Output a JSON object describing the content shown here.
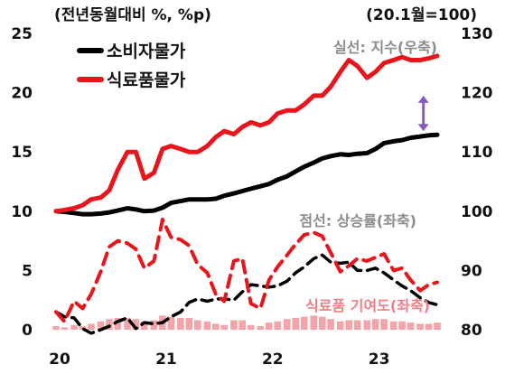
{
  "chart_data": {
    "type": "line",
    "left_unit": "(전년동월대비 %, %p)",
    "right_unit": "(20.1월=100)",
    "y_left": {
      "min": 0,
      "max": 25,
      "ticks": [
        "0",
        "5",
        "10",
        "15",
        "20",
        "25"
      ]
    },
    "y_right": {
      "min": 80,
      "max": 130,
      "ticks": [
        "80",
        "90",
        "100",
        "110",
        "120",
        "130"
      ]
    },
    "x_range": [
      2020.0,
      2023.58
    ],
    "x_ticks": [
      {
        "value": 2020.0,
        "label": "20"
      },
      {
        "value": 2021.0,
        "label": "21"
      },
      {
        "value": 2022.0,
        "label": "22"
      },
      {
        "value": 2023.0,
        "label": "23"
      }
    ],
    "legend": {
      "placement": "top-left",
      "items": [
        {
          "label": "소비자물가",
          "color": "#000000"
        },
        {
          "label": "식료품물가",
          "color": "#e8161c"
        }
      ]
    },
    "annotations": {
      "solid_note": "실선: 지수(우축)",
      "dashed_note": "점선: 상승률(좌축)",
      "bar_note": "식료품 기여도(좌축)"
    },
    "colors": {
      "cpi": "#000000",
      "food": "#e8161c",
      "bars": "#f4a3a8",
      "arrow": "#8a5cc0"
    },
    "series": [
      {
        "name": "소비자물가",
        "axis": "right",
        "style": "solid",
        "x": [
          2020.0,
          2020.08,
          2020.17,
          2020.25,
          2020.33,
          2020.42,
          2020.5,
          2020.58,
          2020.67,
          2020.75,
          2020.83,
          2020.92,
          2021.0,
          2021.08,
          2021.17,
          2021.25,
          2021.33,
          2021.42,
          2021.5,
          2021.58,
          2021.67,
          2021.75,
          2021.83,
          2021.92,
          2022.0,
          2022.08,
          2022.17,
          2022.25,
          2022.33,
          2022.42,
          2022.5,
          2022.58,
          2022.67,
          2022.75,
          2022.83,
          2022.92,
          2023.0,
          2023.08,
          2023.17,
          2023.25,
          2023.33,
          2023.42,
          2023.5,
          2023.58
        ],
        "values": [
          100.0,
          99.9,
          99.7,
          99.5,
          99.5,
          99.6,
          99.8,
          100.1,
          100.5,
          100.3,
          100.0,
          100.1,
          100.6,
          101.4,
          101.7,
          102.0,
          102.0,
          102.0,
          102.1,
          102.6,
          103.0,
          103.4,
          103.8,
          104.2,
          104.6,
          105.3,
          105.9,
          106.7,
          107.5,
          108.2,
          108.9,
          109.3,
          109.6,
          109.5,
          109.7,
          109.8,
          110.5,
          111.5,
          111.8,
          112.0,
          112.4,
          112.6,
          112.8,
          112.9
        ]
      },
      {
        "name": "식료품물가",
        "axis": "right",
        "style": "solid",
        "x": [
          2020.0,
          2020.08,
          2020.17,
          2020.25,
          2020.33,
          2020.42,
          2020.5,
          2020.58,
          2020.67,
          2020.75,
          2020.83,
          2020.92,
          2021.0,
          2021.08,
          2021.17,
          2021.25,
          2021.33,
          2021.42,
          2021.5,
          2021.58,
          2021.67,
          2021.75,
          2021.83,
          2021.92,
          2022.0,
          2022.08,
          2022.17,
          2022.25,
          2022.33,
          2022.42,
          2022.5,
          2022.58,
          2022.67,
          2022.75,
          2022.83,
          2022.92,
          2023.0,
          2023.08,
          2023.17,
          2023.25,
          2023.33,
          2023.42,
          2023.5,
          2023.58
        ],
        "values": [
          100.0,
          100.2,
          100.5,
          101.0,
          102.0,
          102.3,
          103.5,
          107.0,
          110.0,
          110.0,
          105.5,
          106.5,
          110.5,
          111.0,
          110.5,
          110.0,
          110.0,
          111.0,
          112.5,
          113.5,
          113.0,
          114.2,
          115.0,
          114.5,
          115.0,
          116.5,
          117.0,
          117.0,
          118.0,
          119.5,
          119.5,
          121.0,
          123.5,
          125.5,
          124.5,
          122.5,
          123.5,
          125.0,
          125.5,
          126.0,
          125.5,
          125.5,
          125.8,
          126.2
        ]
      },
      {
        "name": "소비자물가 상승률",
        "axis": "left",
        "style": "dashed",
        "x": [
          2020.0,
          2020.08,
          2020.17,
          2020.25,
          2020.33,
          2020.42,
          2020.5,
          2020.58,
          2020.67,
          2020.75,
          2020.83,
          2020.92,
          2021.0,
          2021.08,
          2021.17,
          2021.25,
          2021.33,
          2021.42,
          2021.5,
          2021.58,
          2021.67,
          2021.75,
          2021.83,
          2021.92,
          2022.0,
          2022.08,
          2022.17,
          2022.25,
          2022.33,
          2022.42,
          2022.5,
          2022.58,
          2022.67,
          2022.75,
          2022.83,
          2022.92,
          2023.0,
          2023.08,
          2023.17,
          2023.25,
          2023.33,
          2023.42,
          2023.5,
          2023.58
        ],
        "values": [
          1.5,
          1.1,
          1.0,
          0.1,
          -0.3,
          0.0,
          0.3,
          0.7,
          1.0,
          0.1,
          0.6,
          0.5,
          0.6,
          1.1,
          1.5,
          2.3,
          2.6,
          2.4,
          2.6,
          2.6,
          2.5,
          3.2,
          3.8,
          3.7,
          3.6,
          3.7,
          4.1,
          4.8,
          5.3,
          6.0,
          6.3,
          5.7,
          5.6,
          5.7,
          5.0,
          5.0,
          5.2,
          4.8,
          4.2,
          3.7,
          3.3,
          2.7,
          2.3,
          2.1
        ]
      },
      {
        "name": "식료품물가 상승률",
        "axis": "left",
        "style": "dashed",
        "x": [
          2020.0,
          2020.08,
          2020.17,
          2020.25,
          2020.33,
          2020.42,
          2020.5,
          2020.58,
          2020.67,
          2020.75,
          2020.83,
          2020.92,
          2021.0,
          2021.08,
          2021.17,
          2021.25,
          2021.33,
          2021.42,
          2021.5,
          2021.58,
          2021.67,
          2021.75,
          2021.83,
          2021.92,
          2022.0,
          2022.08,
          2022.17,
          2022.25,
          2022.33,
          2022.42,
          2022.5,
          2022.58,
          2022.67,
          2022.75,
          2022.83,
          2022.92,
          2023.0,
          2023.08,
          2023.17,
          2023.25,
          2023.33,
          2023.42,
          2023.5,
          2023.58
        ],
        "values": [
          1.5,
          0.7,
          2.4,
          1.8,
          3.0,
          4.9,
          7.0,
          7.5,
          7.3,
          6.8,
          5.2,
          5.8,
          9.3,
          7.8,
          7.6,
          7.1,
          5.5,
          4.8,
          3.0,
          2.4,
          5.8,
          6.0,
          2.2,
          1.8,
          4.2,
          5.3,
          6.3,
          7.2,
          8.0,
          8.2,
          7.9,
          6.5,
          4.9,
          5.4,
          6.0,
          5.8,
          6.1,
          6.4,
          5.0,
          5.2,
          4.2,
          3.3,
          3.8,
          4.0
        ]
      }
    ],
    "bars": {
      "name": "식료품 기여도",
      "axis": "left",
      "x": [
        2020.0,
        2020.08,
        2020.17,
        2020.25,
        2020.33,
        2020.42,
        2020.5,
        2020.58,
        2020.67,
        2020.75,
        2020.83,
        2020.92,
        2021.0,
        2021.08,
        2021.17,
        2021.25,
        2021.33,
        2021.42,
        2021.5,
        2021.58,
        2021.67,
        2021.75,
        2021.83,
        2021.92,
        2022.0,
        2022.08,
        2022.17,
        2022.25,
        2022.33,
        2022.42,
        2022.5,
        2022.58,
        2022.67,
        2022.75,
        2022.83,
        2022.92,
        2023.0,
        2023.08,
        2023.17,
        2023.25,
        2023.33,
        2023.42,
        2023.5,
        2023.58
      ],
      "values": [
        0.3,
        0.2,
        0.4,
        0.3,
        0.5,
        0.7,
        0.9,
        1.0,
        1.0,
        0.9,
        0.7,
        0.8,
        1.2,
        1.1,
        1.0,
        1.0,
        0.8,
        0.7,
        0.5,
        0.4,
        0.8,
        0.8,
        0.4,
        0.3,
        0.6,
        0.7,
        0.9,
        1.0,
        1.1,
        1.2,
        1.1,
        0.9,
        0.7,
        0.8,
        0.8,
        0.8,
        0.9,
        0.9,
        0.7,
        0.7,
        0.6,
        0.5,
        0.5,
        0.6
      ]
    },
    "arrow_marker": {
      "x": 2023.45,
      "from": 113.5,
      "to": 119.5,
      "axis": "right"
    }
  }
}
